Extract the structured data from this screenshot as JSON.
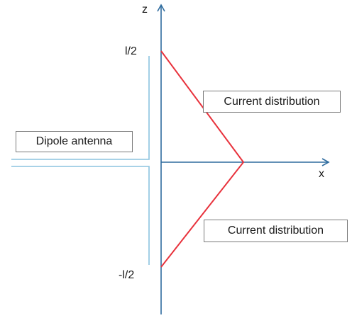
{
  "axes": {
    "z_label": "z",
    "x_label": "x",
    "top_tick_label": "l/2",
    "bottom_tick_label": "-l/2"
  },
  "labels": {
    "dipole_antenna": "Dipole antenna",
    "current_distribution_top": "Current distribution",
    "current_distribution_bottom": "Current distribution"
  },
  "colors": {
    "axis": "#2e6b9e",
    "antenna": "#8cc3df",
    "current": "#e8323c",
    "box_border": "#7a7a7a",
    "text": "#1a1a1a"
  }
}
